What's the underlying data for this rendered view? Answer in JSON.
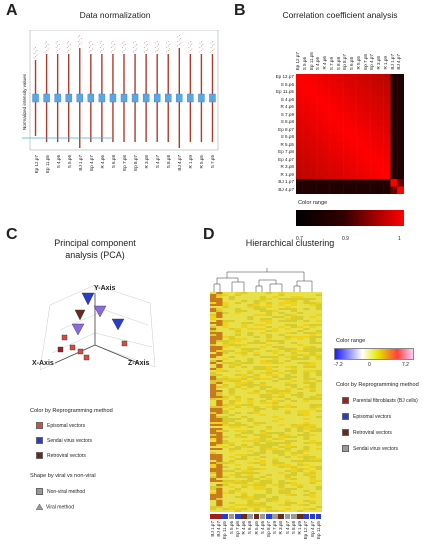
{
  "panels": {
    "A": {
      "letter": "A",
      "title": "Data normalization",
      "ylabel": "Normalized intensity values",
      "samples": [
        "Ep 12.p7",
        "Ep 11.p5",
        "S 4.p6",
        "S 5.p6",
        "BJ 1.p7",
        "Ep 4.p7",
        "R 4.p6",
        "S 6.p8",
        "Ep 7.p8",
        "Ep 8.p7",
        "R 3.p8",
        "S 4.p7",
        "S 8.p8",
        "BJ 4.p7",
        "R 1.p9",
        "R 5.p5",
        "S 7.p5"
      ]
    },
    "B": {
      "letter": "B",
      "title": "Correlation coefficient analysis",
      "rows": [
        "Ep 12.p7",
        "S 5.p6",
        "Ep 11.p5",
        "S 4.p6",
        "R 4.p6",
        "S 7.p9",
        "S 8.p8",
        "Ep 8.p7",
        "S 6.p8",
        "R 5.p5",
        "Ep 7.p8",
        "Ep 4.p7",
        "R 3.p8",
        "R 1.p9",
        "BJ 1.p7",
        "BJ 4.p7"
      ],
      "color_range_label": "Color range",
      "scale_ticks": [
        "0.7",
        "0.9",
        "1"
      ]
    },
    "C": {
      "letter": "C",
      "title_line1": "Principal component",
      "title_line2": "analysis (PCA)",
      "axes": {
        "x": "X-Axis",
        "y": "Y-Axis",
        "z": "Z-Axis"
      },
      "legend1_title": "Color by Reprogramming method",
      "legend1": [
        {
          "label": "Episomal vectors",
          "color": "#d94a3a"
        },
        {
          "label": "Sendai virus vectors",
          "color": "#2a3dc8"
        },
        {
          "label": "Retroviral vectors",
          "color": "#6a2a1a"
        }
      ],
      "legend2_title": "Shape  by  viral vs non-viral",
      "legend2": [
        {
          "label": "Non-viral method",
          "shape": "square"
        },
        {
          "label": "Viral method",
          "shape": "triangle"
        }
      ]
    },
    "D": {
      "letter": "D",
      "title": "Hierarchical clustering",
      "color_range_label": "Color range",
      "scale_ticks": [
        "-7.2",
        "0",
        "7.2"
      ],
      "legend_title": "Color by Reprogramming method",
      "legend": [
        {
          "label": "Parental fibroblasts (BJ cells)",
          "color": "#a02020"
        },
        {
          "label": "Episomal vectors",
          "color": "#2a3dc8"
        },
        {
          "label": "Retroviral vectors",
          "color": "#6a2a1a"
        },
        {
          "label": "Sendai virus vectors",
          "color": "#999999"
        }
      ],
      "samples": [
        "BJ 1.p7",
        "BJ 4.p7",
        "Ep 11.p5",
        "S 5.p6",
        "Ep 7.p8",
        "R 4.p6",
        "S 6.p8",
        "R 5.p5",
        "S 4.p6",
        "Ep 8.p7",
        "S 7.p9",
        "R 3.p8",
        "S 4.p7",
        "S 8.p8",
        "R 1.p9",
        "Ep 12.p7",
        "Ep 4.p7",
        "Ep 11.p5"
      ]
    }
  }
}
